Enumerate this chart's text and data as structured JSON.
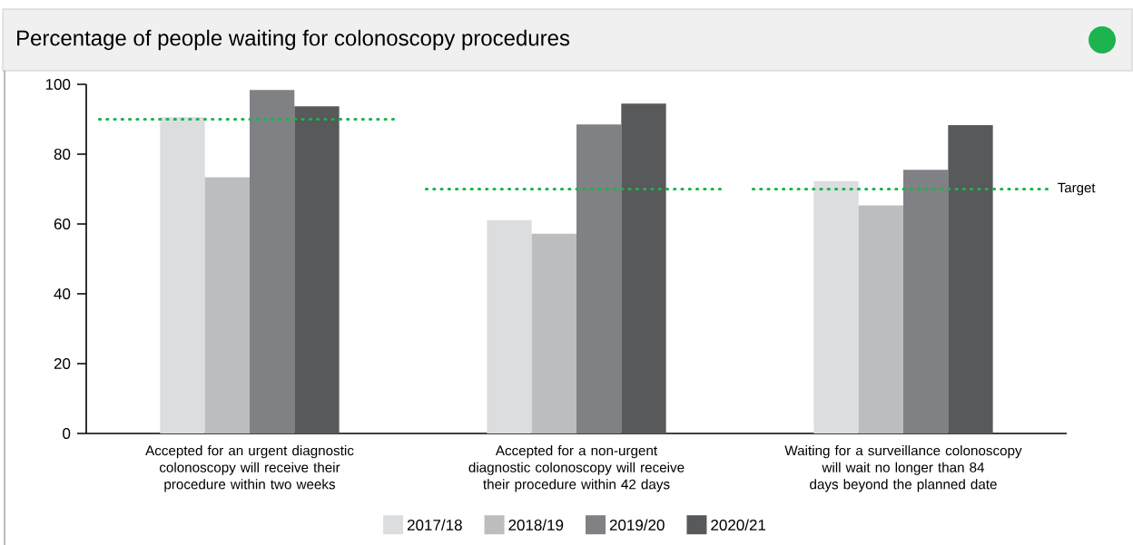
{
  "chart_data": {
    "type": "bar",
    "title": "Percentage of people waiting for colonoscopy procedures",
    "categories": [
      "Accepted for an urgent diagnostic colonoscopy will receive their procedure within two weeks",
      "Accepted for a non-urgent diagnostic colonoscopy will receive their procedure within 42 days",
      "Waiting for a surveillance colonoscopy will wait no longer than 84 days beyond the planned date"
    ],
    "series": [
      {
        "name": "2017/18",
        "color": "#dcdddf",
        "values": [
          90.6,
          61.1,
          72.3
        ]
      },
      {
        "name": "2018/19",
        "color": "#bcbdbf",
        "values": [
          73.4,
          57.2,
          65.3
        ]
      },
      {
        "name": "2019/20",
        "color": "#808184",
        "values": [
          98.4,
          88.5,
          75.5
        ]
      },
      {
        "name": "2020/21",
        "color": "#58595b",
        "values": [
          93.7,
          94.5,
          88.3
        ]
      }
    ],
    "ref_lines": [
      {
        "axis": "y",
        "value": 90,
        "color": "#1db34f",
        "line_style": "dotted"
      },
      {
        "axis": "y",
        "value": 70,
        "color": "#1db34f",
        "line_style": "dotted",
        "label": "Target"
      }
    ],
    "ylim": [
      0,
      100
    ],
    "yticks": [
      0,
      20,
      40,
      60,
      80,
      100
    ],
    "legend": "bottom"
  }
}
